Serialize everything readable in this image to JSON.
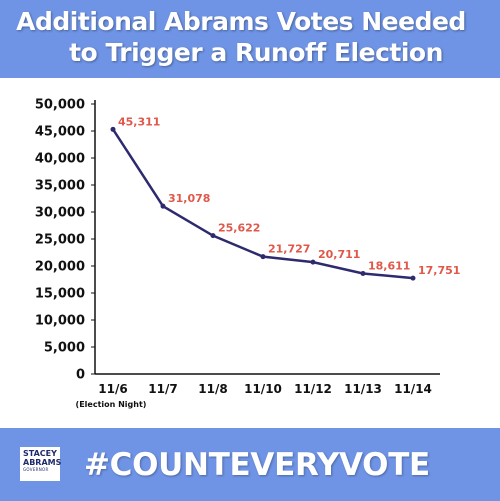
{
  "header": {
    "title_line1": "Additional Abrams Votes Needed",
    "title_line2": "to Trigger a Runoff Election"
  },
  "footer": {
    "hashtag": "#COUNTEVERYVOTE",
    "logo_line1": "STACEY",
    "logo_line2": "ABRAMS",
    "logo_line3": "GOVERNOR"
  },
  "colors": {
    "banner": "#6f94e6",
    "line": "#2e2a6e",
    "data_label": "#e0584a",
    "text": "#111111"
  },
  "chart_data": {
    "type": "line",
    "title": "Additional Abrams Votes Needed to Trigger a Runoff Election",
    "categories": [
      "11/6",
      "11/7",
      "11/8",
      "11/10",
      "11/12",
      "11/13",
      "11/14"
    ],
    "category_sublabels": [
      "(Election Night)",
      "",
      "",
      "",
      "",
      "",
      ""
    ],
    "values": [
      45311,
      31078,
      25622,
      21727,
      20711,
      18611,
      17751
    ],
    "data_labels": [
      "45,311",
      "31,078",
      "25,622",
      "21,727",
      "20,711",
      "18,611",
      "17,751"
    ],
    "ylim": [
      0,
      50000
    ],
    "yticks": [
      0,
      5000,
      10000,
      15000,
      20000,
      25000,
      30000,
      35000,
      40000,
      45000,
      50000
    ],
    "ytick_labels": [
      "0",
      "5,000",
      "10,000",
      "15,000",
      "20,000",
      "25,000",
      "30,000",
      "35,000",
      "40,000",
      "45,000",
      "50,000"
    ],
    "xlabel": "",
    "ylabel": "",
    "grid": false,
    "legend": "none"
  }
}
